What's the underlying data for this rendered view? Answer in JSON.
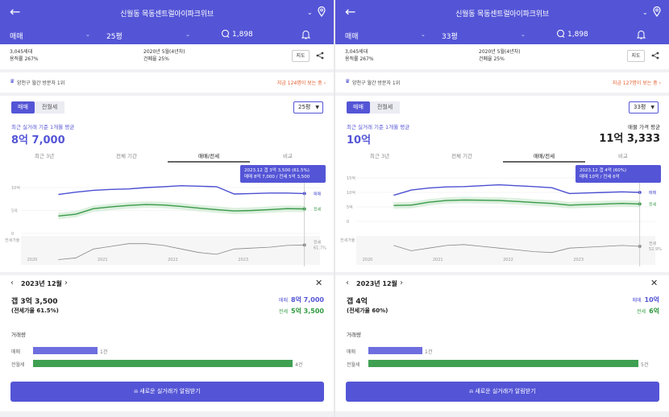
{
  "panels": [
    {
      "header": {
        "title": "신월동 목동센트럴아이파크위브"
      },
      "filters": {
        "trade_type": "매매",
        "size": "25평",
        "comments": "1,898"
      },
      "info": {
        "households": "3,045세대",
        "floor_area_ratio": "용적률 267%",
        "built": "2020년 5월(4년차)",
        "coverage": "건폐율 25%",
        "map_label": "지도"
      },
      "visitor": {
        "text": "양천구 월간 방문자 1위",
        "hot": "지금 124명이 보는 중"
      },
      "toggle": {
        "sale": "매매",
        "jeonse": "전월세"
      },
      "size_select": "25평",
      "average": {
        "left_label": "최근 실거래 기준 1개월 평균",
        "left_value": "8억 7,000",
        "right_label": "",
        "right_value": ""
      },
      "tabs": [
        "최근 3년",
        "전체 기간",
        "매매/전세",
        "비교"
      ],
      "tooltip": {
        "line1": "2023.12  갭 3억 3,500 (61.5%)",
        "line2": "매매 8억 7,000 / 전세 5억 3,500"
      },
      "detail": {
        "month": "2023년 12월",
        "gap": "갭 3억 3,500",
        "ratio": "(전세가율 61.5%)",
        "sale_key": "매매",
        "sale_val": "8억 7,000",
        "jeonse_key": "전세",
        "jeonse_val": "5억 3,500"
      },
      "volume": {
        "title": "거래량",
        "rows": [
          {
            "label": "매매",
            "count": "1건",
            "fraction": 0.24
          },
          {
            "label": "전월세",
            "count": "4건",
            "fraction": 0.96
          }
        ]
      },
      "cta": "새로운 실거래가 알림받기"
    },
    {
      "header": {
        "title": "신월동 목동센트럴아이파크위브"
      },
      "filters": {
        "trade_type": "매매",
        "size": "33평",
        "comments": "1,898"
      },
      "info": {
        "households": "3,045세대",
        "floor_area_ratio": "용적률 267%",
        "built": "2020년 5월(4년차)",
        "coverage": "건폐율 25%",
        "map_label": "지도"
      },
      "visitor": {
        "text": "양천구 월간 방문자 1위",
        "hot": "지금 127명이 보는 중"
      },
      "toggle": {
        "sale": "매매",
        "jeonse": "전월세"
      },
      "size_select": "33평",
      "average": {
        "left_label": "최근 실거래 기준 1개월 평균",
        "left_value": "10억",
        "right_label": "매물 가격 평균",
        "right_value": "11억 3,333"
      },
      "tabs": [
        "최근 3년",
        "전체 기간",
        "매매/전세",
        "비교"
      ],
      "tooltip": {
        "line1": "2023.12  갭 4억 (60%)",
        "line2": "매매 10억 / 전세 6억"
      },
      "detail": {
        "month": "2023년 12월",
        "gap": "갭 4억",
        "ratio": "(전세가율 60%)",
        "sale_key": "매매",
        "sale_val": "10억",
        "jeonse_key": "전세",
        "jeonse_val": "6억"
      },
      "volume": {
        "title": "거래량",
        "rows": [
          {
            "label": "매매",
            "count": "1건",
            "fraction": 0.2
          },
          {
            "label": "전월세",
            "count": "5건",
            "fraction": 1.0
          }
        ]
      },
      "cta": "새로운 실거래가 알림받기"
    }
  ],
  "chart_data": [
    {
      "type": "line",
      "x_ticks": [
        "2020",
        "2021",
        "2022",
        "2023"
      ],
      "y_ticks": [
        "10억",
        "5억",
        "0",
        "전세가율"
      ],
      "series": [
        {
          "name": "매매",
          "color": "#4b4fd1",
          "x": [
            "2020.06",
            "2020.09",
            "2020.12",
            "2021.03",
            "2021.06",
            "2021.09",
            "2021.12",
            "2022.03",
            "2022.06",
            "2022.09",
            "2022.12",
            "2023.03",
            "2023.06",
            "2023.09",
            "2023.12"
          ],
          "values": [
            8.5,
            9.0,
            9.4,
            9.6,
            9.7,
            10.0,
            10.2,
            10.4,
            10.3,
            10.2,
            8.6,
            8.7,
            8.8,
            8.8,
            8.7
          ]
        },
        {
          "name": "전세",
          "color": "#3a9a4a",
          "x": [
            "2020.06",
            "2020.09",
            "2020.12",
            "2021.03",
            "2021.06",
            "2021.09",
            "2021.12",
            "2022.03",
            "2022.06",
            "2022.09",
            "2022.12",
            "2023.03",
            "2023.06",
            "2023.09",
            "2023.12"
          ],
          "values": [
            3.8,
            4.2,
            5.4,
            5.8,
            6.1,
            6.3,
            6.2,
            5.9,
            5.5,
            5.2,
            4.9,
            5.0,
            5.2,
            5.4,
            5.35
          ]
        },
        {
          "name": "전세가율",
          "color": "#888888",
          "x": [
            "2020.06",
            "2020.09",
            "2020.12",
            "2021.03",
            "2021.06",
            "2021.09",
            "2021.12",
            "2022.03",
            "2022.06",
            "2022.09",
            "2022.12",
            "2023.03",
            "2023.06",
            "2023.09",
            "2023.12"
          ],
          "values": [
            45,
            47,
            57,
            60,
            63,
            63,
            61,
            57,
            53,
            51,
            57,
            58,
            59,
            61,
            61.5
          ]
        }
      ],
      "end_labels": {
        "sale": "매매",
        "jeonse": "전세",
        "ratio": "전세",
        "ratio_value": "61.7%"
      }
    },
    {
      "type": "line",
      "x_ticks": [
        "2020",
        "2021",
        "2022",
        "2023"
      ],
      "y_ticks": [
        "15억",
        "10억",
        "5억",
        "0",
        "전세가율"
      ],
      "series": [
        {
          "name": "매매",
          "color": "#4b4fd1",
          "x": [
            "2020.06",
            "2020.09",
            "2020.12",
            "2021.03",
            "2021.06",
            "2021.09",
            "2021.12",
            "2022.03",
            "2022.06",
            "2022.09",
            "2022.12",
            "2023.03",
            "2023.06",
            "2023.09",
            "2023.12"
          ],
          "values": [
            9.0,
            10.8,
            11.5,
            11.9,
            12.0,
            12.3,
            12.6,
            12.3,
            12.0,
            11.6,
            9.6,
            9.8,
            10.0,
            10.2,
            10.0
          ]
        },
        {
          "name": "전세",
          "color": "#3a9a4a",
          "x": [
            "2020.06",
            "2020.09",
            "2020.12",
            "2021.03",
            "2021.06",
            "2021.09",
            "2021.12",
            "2022.03",
            "2022.06",
            "2022.09",
            "2022.12",
            "2023.03",
            "2023.06",
            "2023.09",
            "2023.12"
          ],
          "values": [
            5.5,
            5.6,
            6.6,
            7.2,
            7.4,
            7.3,
            7.2,
            6.9,
            6.5,
            6.2,
            5.6,
            5.8,
            6.0,
            6.2,
            6.0
          ]
        },
        {
          "name": "전세가율",
          "color": "#888888",
          "x": [
            "2020.06",
            "2020.09",
            "2020.12",
            "2021.03",
            "2021.06",
            "2021.09",
            "2021.12",
            "2022.03",
            "2022.06",
            "2022.09",
            "2022.12",
            "2023.03",
            "2023.06",
            "2023.09",
            "2023.12"
          ],
          "values": [
            61,
            55,
            58,
            61,
            62,
            60,
            58,
            56,
            54,
            53,
            58,
            59,
            60,
            61,
            60
          ]
        }
      ],
      "end_labels": {
        "sale": "매매",
        "jeonse": "전세",
        "ratio": "전세",
        "ratio_value": "52.9%"
      }
    }
  ]
}
